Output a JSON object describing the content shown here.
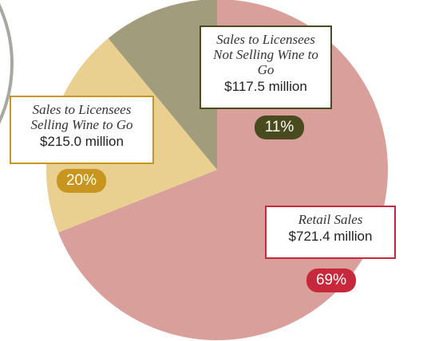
{
  "chart_data": {
    "type": "pie",
    "categories": [
      "Retail Sales",
      "Sales to Licensees Selling Wine to Go",
      "Sales to Licensees Not Selling Wine to Go"
    ],
    "amounts": [
      "$721.4 million",
      "$215.0 million",
      "$117.5 million"
    ],
    "values": [
      69,
      20,
      11
    ],
    "value_labels": [
      "69%",
      "20%",
      "11%"
    ],
    "colors": [
      "#d9a09b",
      "#e9cf90",
      "#a19d7c"
    ],
    "label_colors": [
      "#c8283c",
      "#c8961e",
      "#4a4a1f"
    ]
  }
}
